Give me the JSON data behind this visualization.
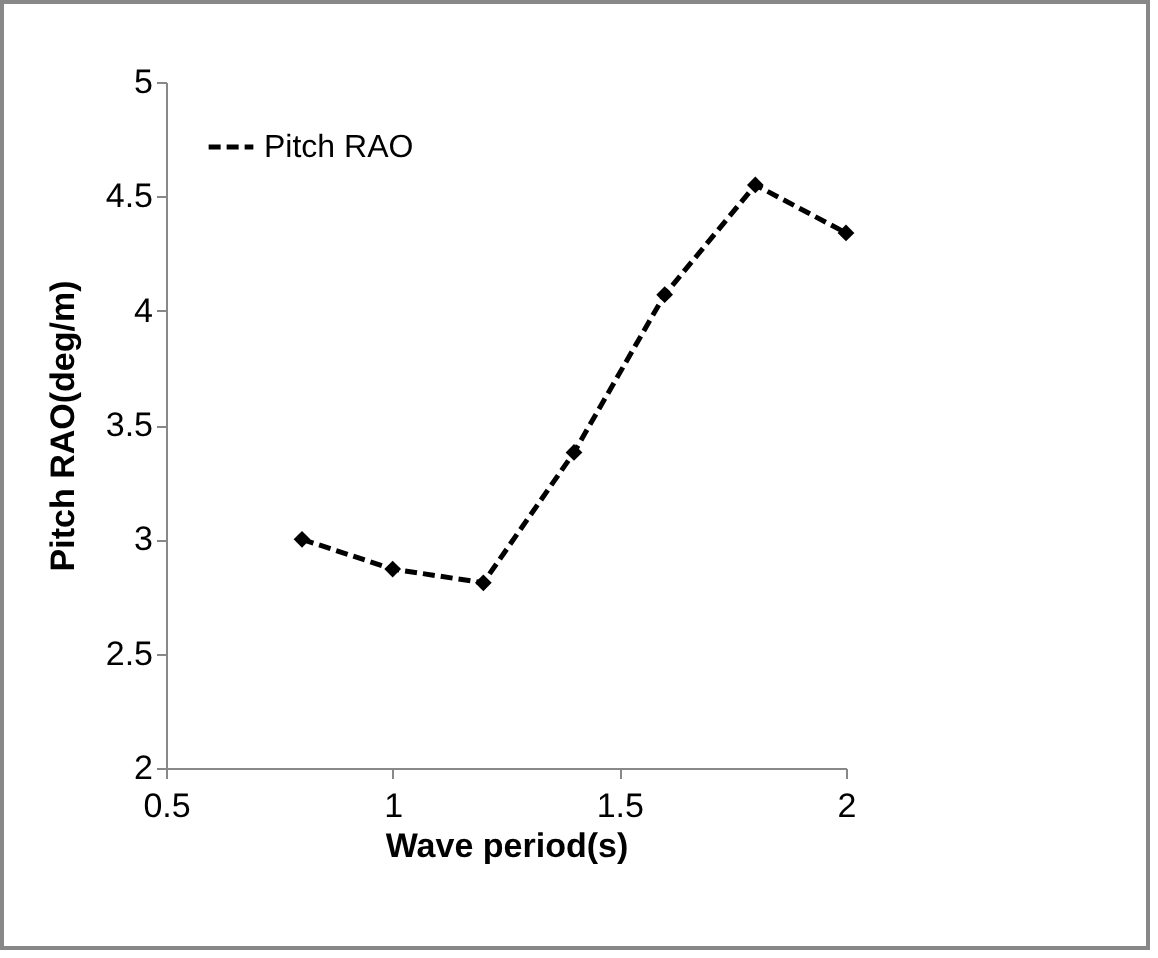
{
  "chart_data": {
    "type": "line",
    "xlabel": "Wave period(s)",
    "ylabel": "Pitch RAO(deg/m)",
    "x": [
      0.8,
      1.0,
      1.2,
      1.4,
      1.6,
      1.8,
      2.0
    ],
    "series": [
      {
        "name": "Pitch RAO",
        "color": "#000000",
        "values": [
          3.0,
          2.87,
          2.81,
          3.38,
          4.07,
          4.55,
          4.34
        ]
      }
    ],
    "xlim": [
      0.5,
      2.0
    ],
    "xticks": [
      0.5,
      1,
      1.5,
      2
    ],
    "ylim": [
      2,
      5
    ],
    "yticks": [
      2,
      2.5,
      3,
      3.5,
      4,
      4.5,
      5
    ],
    "grid": false,
    "legend": "top left",
    "marker": "diamond",
    "line_style": "dashed"
  }
}
